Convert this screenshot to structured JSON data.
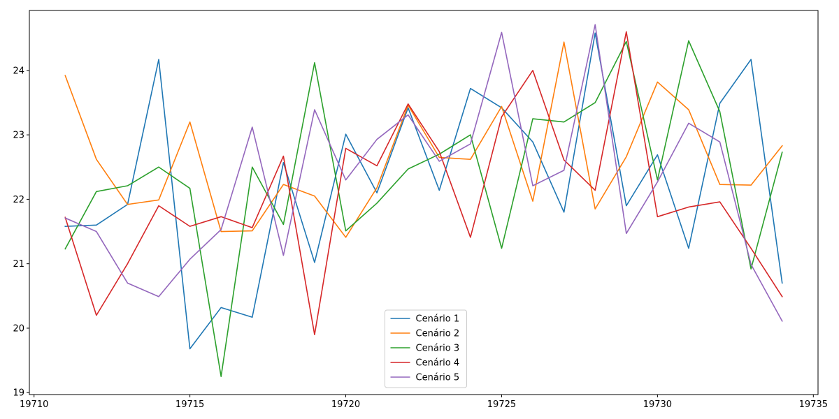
{
  "chart_data": {
    "type": "line",
    "title": "",
    "xlabel": "",
    "ylabel": "",
    "xlim": [
      19709.85,
      19735.15
    ],
    "ylim": [
      18.97,
      24.93
    ],
    "x_ticks": [
      19710,
      19715,
      19720,
      19725,
      19730,
      19735
    ],
    "y_ticks": [
      19,
      20,
      21,
      22,
      23,
      24
    ],
    "grid": false,
    "legend_position": "bottom-center",
    "x": [
      19711,
      19712,
      19713,
      19714,
      19715,
      19716,
      19717,
      19718,
      19719,
      19720,
      19721,
      19722,
      19723,
      19724,
      19725,
      19726,
      19727,
      19728,
      19729,
      19730,
      19731,
      19732,
      19733,
      19734
    ],
    "series": [
      {
        "name": "Cenário 1",
        "color": "#1f77b4",
        "values": [
          21.58,
          21.6,
          21.92,
          24.17,
          19.68,
          20.32,
          20.17,
          22.57,
          21.02,
          23.01,
          22.1,
          23.42,
          22.14,
          23.72,
          23.42,
          22.89,
          21.8,
          24.58,
          21.9,
          22.69,
          21.24,
          23.49,
          24.17,
          20.7
        ]
      },
      {
        "name": "Cenário 2",
        "color": "#ff7f0e",
        "values": [
          23.92,
          22.62,
          21.92,
          21.99,
          23.2,
          21.5,
          21.51,
          22.23,
          22.05,
          21.41,
          22.18,
          23.46,
          22.65,
          22.62,
          23.44,
          21.97,
          24.44,
          21.85,
          22.66,
          23.82,
          23.39,
          22.23,
          22.22,
          22.83
        ]
      },
      {
        "name": "Cenário 3",
        "color": "#2ca02c",
        "values": [
          21.23,
          22.12,
          22.21,
          22.5,
          22.17,
          19.25,
          22.5,
          21.61,
          24.12,
          21.51,
          21.94,
          22.47,
          22.7,
          23.0,
          21.24,
          23.25,
          23.2,
          23.5,
          24.45,
          22.3,
          24.46,
          23.36,
          20.92,
          22.73
        ]
      },
      {
        "name": "Cenário 4",
        "color": "#d62728",
        "values": [
          21.72,
          20.2,
          21.0,
          21.9,
          21.58,
          21.73,
          21.56,
          22.67,
          19.9,
          22.79,
          22.52,
          23.48,
          22.74,
          21.41,
          23.28,
          24.0,
          22.61,
          22.14,
          24.6,
          21.73,
          21.88,
          21.96,
          21.24,
          20.49
        ]
      },
      {
        "name": "Cenário 5",
        "color": "#9467bd",
        "values": [
          21.71,
          21.5,
          20.7,
          20.49,
          21.07,
          21.53,
          23.12,
          21.13,
          23.39,
          22.3,
          22.93,
          23.31,
          22.59,
          22.86,
          24.59,
          22.21,
          22.45,
          24.71,
          21.47,
          22.27,
          23.18,
          22.89,
          20.99,
          20.11
        ]
      }
    ]
  }
}
